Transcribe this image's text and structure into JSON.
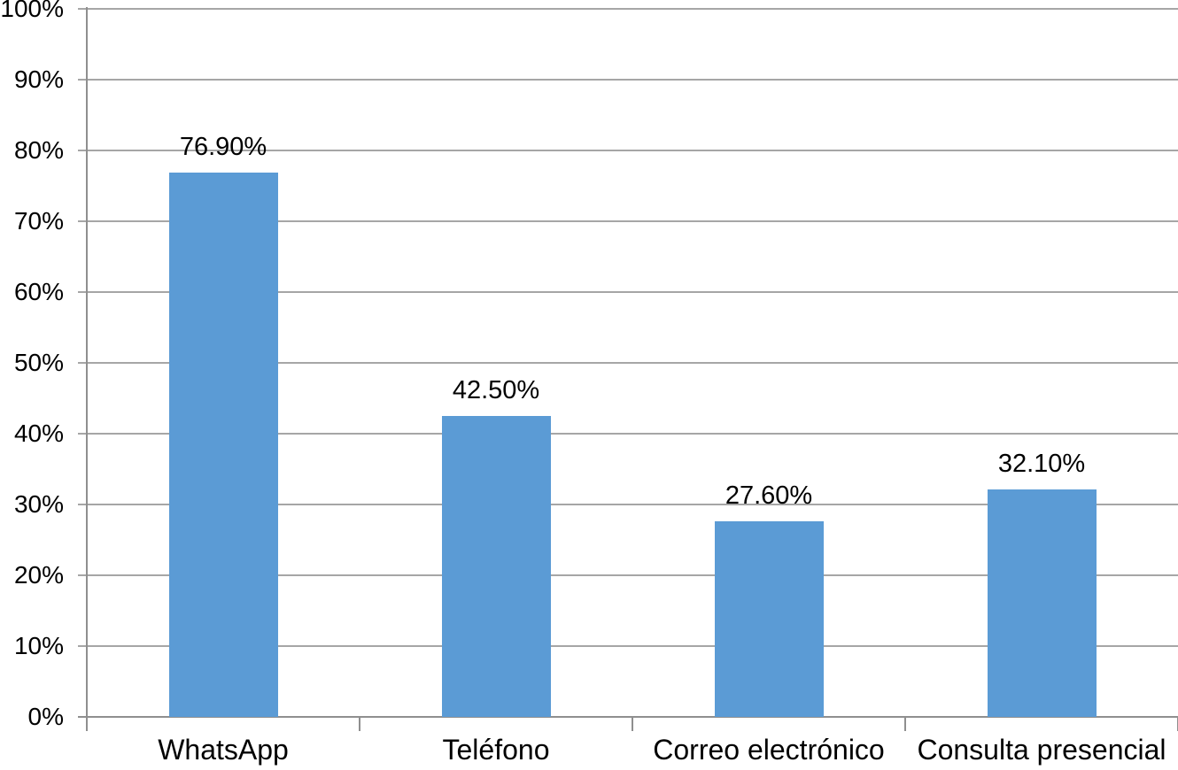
{
  "chart_data": {
    "type": "bar",
    "title": "",
    "xlabel": "",
    "ylabel": "",
    "categories": [
      "WhatsApp",
      "Teléfono",
      "Correo electrónico",
      "Consulta presencial"
    ],
    "values": [
      76.9,
      42.5,
      27.6,
      32.1
    ],
    "data_labels": [
      "76.90%",
      "42.50%",
      "27.60%",
      "32.10%"
    ],
    "ylim": [
      0,
      100
    ],
    "ytick_step": 10,
    "ytick_labels": [
      "0%",
      "10%",
      "20%",
      "30%",
      "40%",
      "50%",
      "60%",
      "70%",
      "80%",
      "90%",
      "100%"
    ],
    "grid": true,
    "legend": false,
    "colors": {
      "bar": "#5B9BD5",
      "gridline": "#a6a6a6",
      "axis": "#8f8f8f",
      "text": "#000000",
      "background": "#ffffff"
    }
  }
}
